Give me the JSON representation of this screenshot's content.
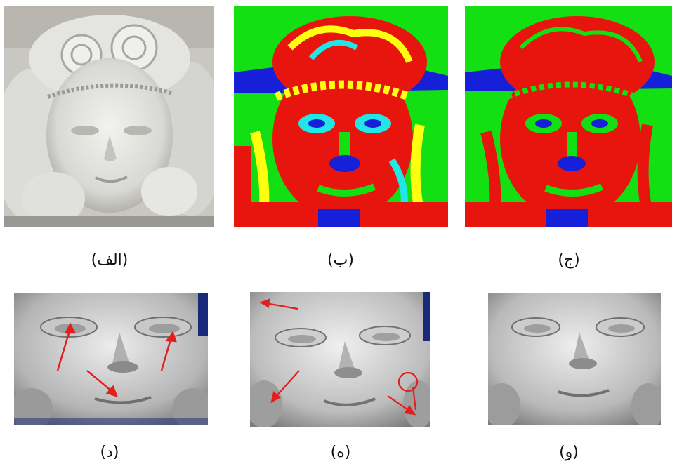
{
  "captions": {
    "a": "(الف)",
    "b": "(ب)",
    "c": "(ج)",
    "d": "(د)",
    "e": "(ه)",
    "f": "(و)"
  },
  "colors": {
    "red": "#e8150f",
    "green": "#12e012",
    "blue": "#1520d8",
    "yellow": "#ffff10",
    "cyan": "#22e6e6",
    "plaster": "#d9d9d6",
    "mesh": "#a9a9a9",
    "annotation": "#e02020"
  }
}
